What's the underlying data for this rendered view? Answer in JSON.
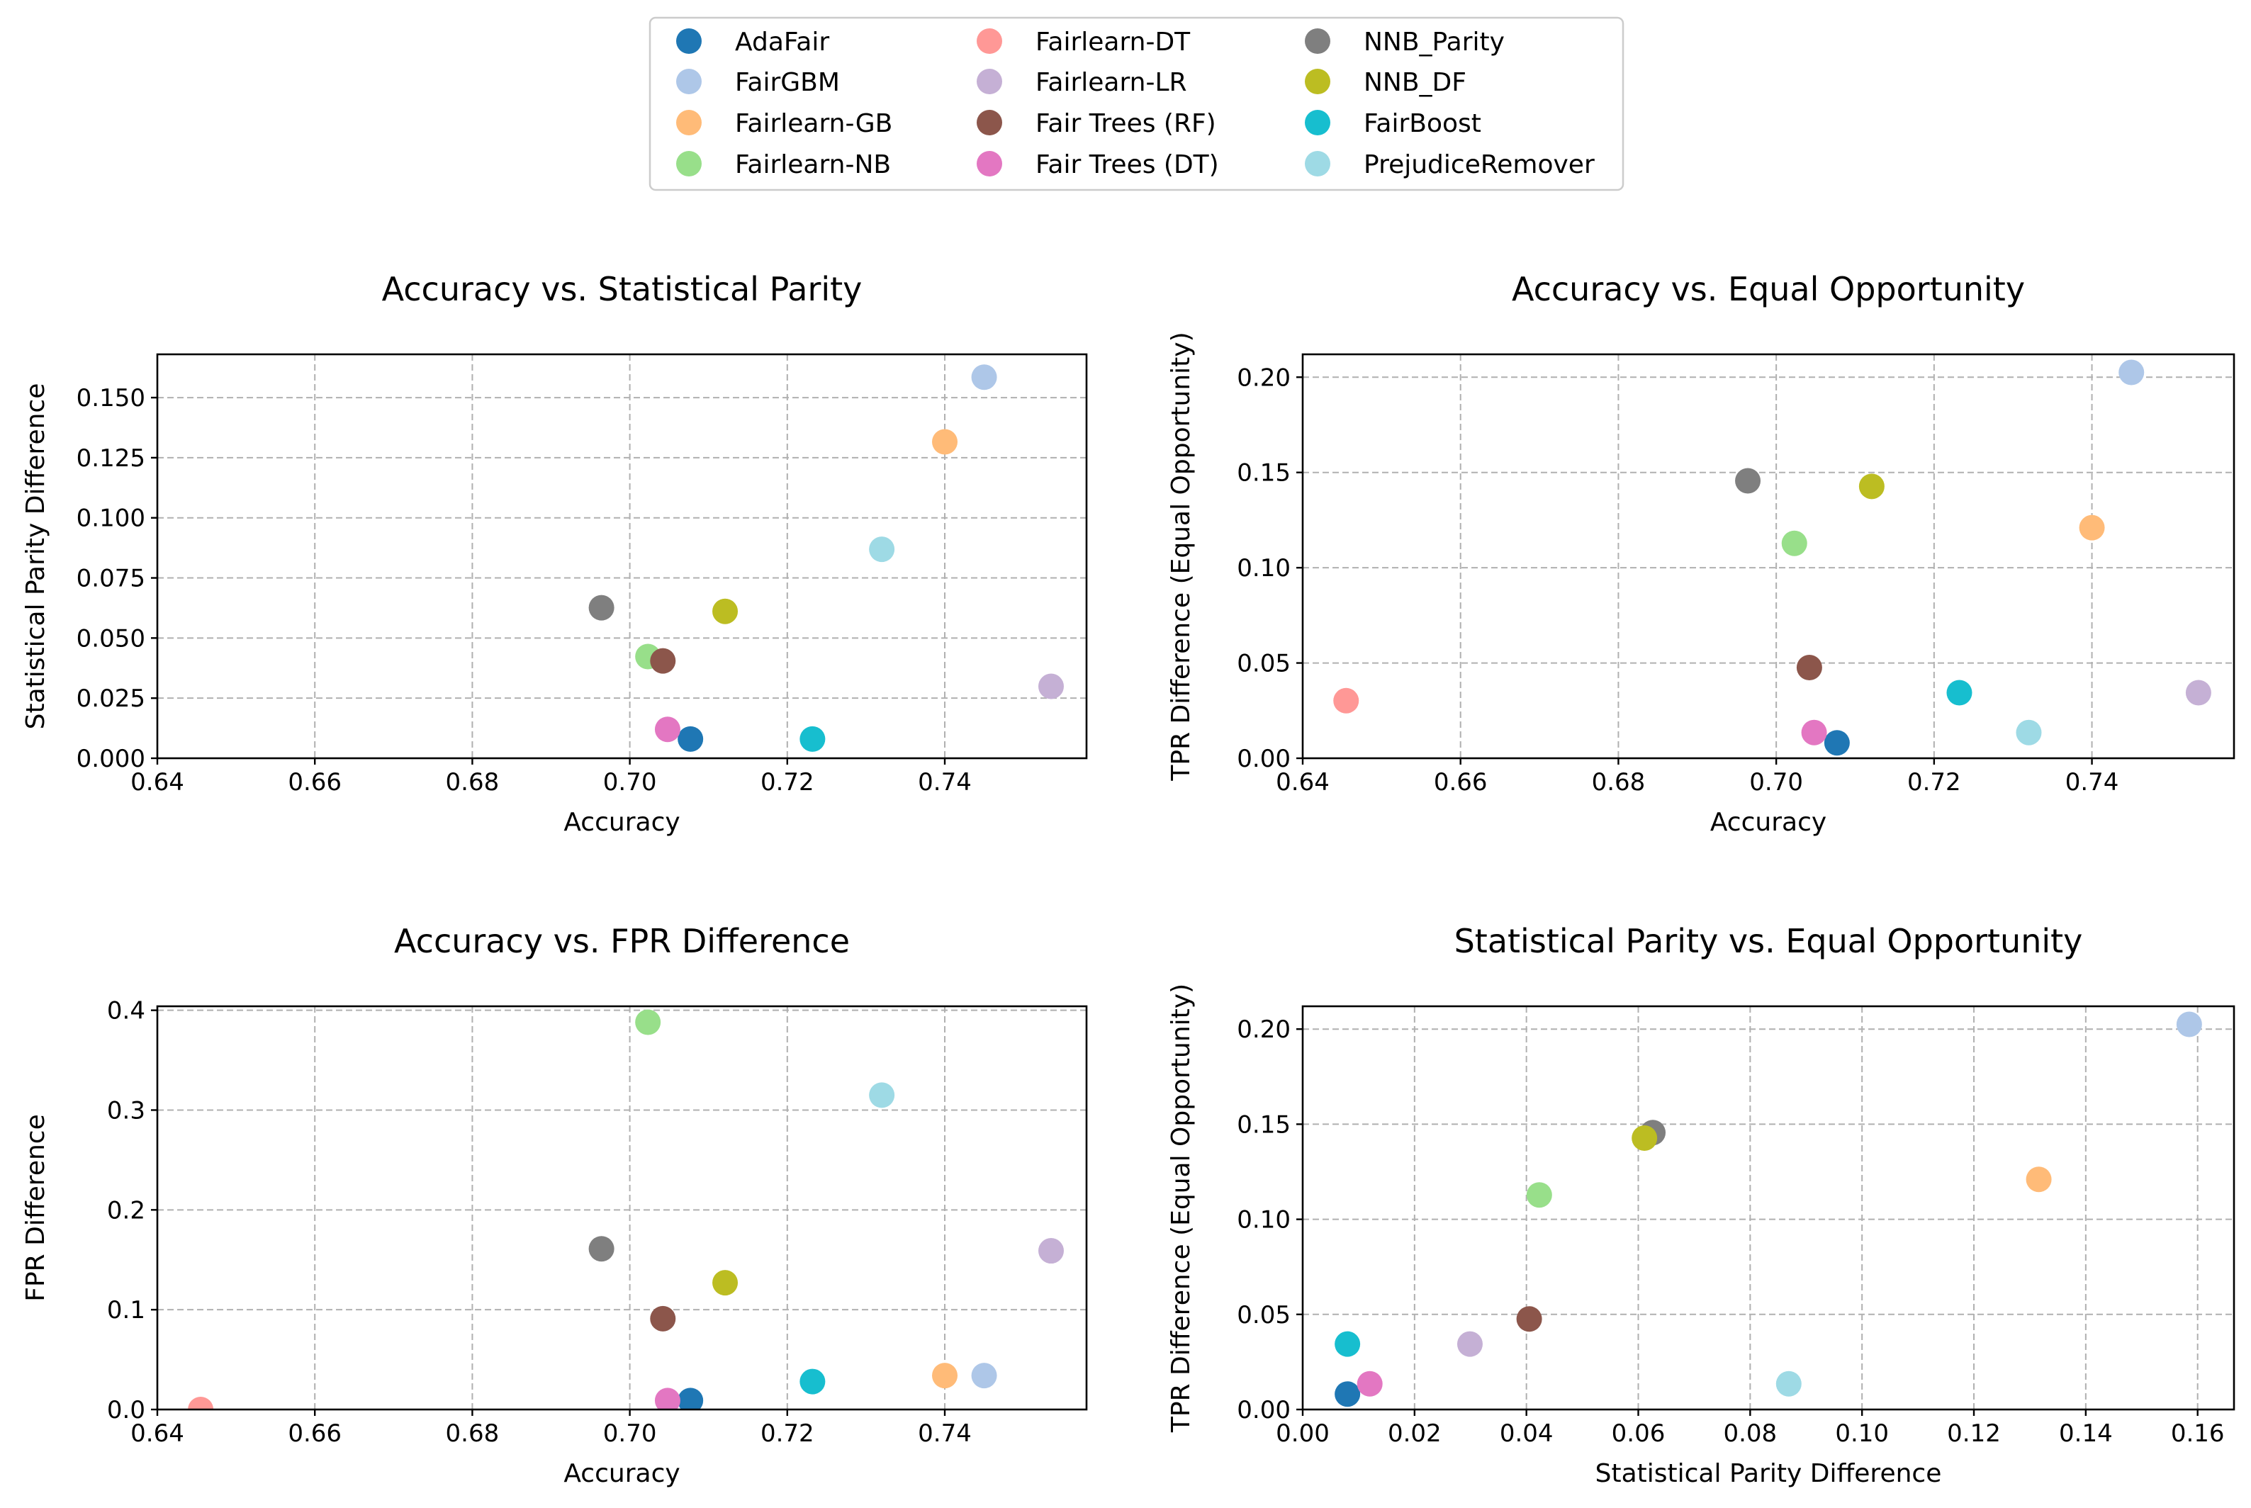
{
  "legend": [
    {
      "name": "AdaFair",
      "color": "#1f77b4"
    },
    {
      "name": "FairGBM",
      "color": "#aec7e8"
    },
    {
      "name": "Fairlearn-GB",
      "color": "#ffbb78"
    },
    {
      "name": "Fairlearn-NB",
      "color": "#98df8a"
    },
    {
      "name": "Fairlearn-DT",
      "color": "#ff9896"
    },
    {
      "name": "Fairlearn-LR",
      "color": "#c5b0d5"
    },
    {
      "name": "Fair Trees (RF)",
      "color": "#8c564b"
    },
    {
      "name": "Fair Trees (DT)",
      "color": "#e377c2"
    },
    {
      "name": "NNB_Parity",
      "color": "#7f7f7f"
    },
    {
      "name": "NNB_DF",
      "color": "#bcbd22"
    },
    {
      "name": "FairBoost",
      "color": "#17becf"
    },
    {
      "name": "PrejudiceRemover",
      "color": "#9edae5"
    }
  ],
  "chart_data": [
    {
      "type": "scatter",
      "title": "Accuracy vs. Statistical Parity",
      "xlabel": "Accuracy",
      "ylabel": "Statistical Parity Difference",
      "xlim": [
        0.64,
        0.758
      ],
      "ylim": [
        0.0,
        0.168
      ],
      "xticks": [
        "0.64",
        "0.66",
        "0.68",
        "0.70",
        "0.72",
        "0.74"
      ],
      "yticks": [
        "0.000",
        "0.025",
        "0.050",
        "0.075",
        "0.100",
        "0.125",
        "0.150"
      ],
      "grid": true,
      "points": [
        {
          "series": "AdaFair",
          "x": 0.7077,
          "y": 0.008
        },
        {
          "series": "FairGBM",
          "x": 0.745,
          "y": 0.1585
        },
        {
          "series": "Fairlearn-GB",
          "x": 0.74,
          "y": 0.1316
        },
        {
          "series": "Fairlearn-NB",
          "x": 0.7023,
          "y": 0.0423
        },
        {
          "series": "Fairlearn-LR",
          "x": 0.7535,
          "y": 0.0299
        },
        {
          "series": "Fair Trees (RF)",
          "x": 0.7042,
          "y": 0.0405
        },
        {
          "series": "Fair Trees (DT)",
          "x": 0.7048,
          "y": 0.012
        },
        {
          "series": "NNB_Parity",
          "x": 0.6964,
          "y": 0.0626
        },
        {
          "series": "NNB_DF",
          "x": 0.7121,
          "y": 0.0611
        },
        {
          "series": "FairBoost",
          "x": 0.7232,
          "y": 0.008
        },
        {
          "series": "PrejudiceRemover",
          "x": 0.732,
          "y": 0.0869
        }
      ]
    },
    {
      "type": "scatter",
      "title": "Accuracy vs. Equal Opportunity",
      "xlabel": "Accuracy",
      "ylabel": "TPR Difference (Equal Opportunity)",
      "xlim": [
        0.64,
        0.758
      ],
      "ylim": [
        0.0,
        0.212
      ],
      "xticks": [
        "0.64",
        "0.66",
        "0.68",
        "0.70",
        "0.72",
        "0.74"
      ],
      "yticks": [
        "0.00",
        "0.05",
        "0.10",
        "0.15",
        "0.20"
      ],
      "grid": true,
      "points": [
        {
          "series": "AdaFair",
          "x": 0.7077,
          "y": 0.0081
        },
        {
          "series": "FairGBM",
          "x": 0.745,
          "y": 0.2025
        },
        {
          "series": "Fairlearn-GB",
          "x": 0.74,
          "y": 0.121
        },
        {
          "series": "Fairlearn-NB",
          "x": 0.7023,
          "y": 0.1128
        },
        {
          "series": "Fairlearn-DT",
          "x": 0.6455,
          "y": 0.0302
        },
        {
          "series": "Fairlearn-LR",
          "x": 0.7535,
          "y": 0.0344
        },
        {
          "series": "Fair Trees (RF)",
          "x": 0.7042,
          "y": 0.0476
        },
        {
          "series": "Fair Trees (DT)",
          "x": 0.7048,
          "y": 0.0135
        },
        {
          "series": "NNB_Parity",
          "x": 0.6964,
          "y": 0.1456
        },
        {
          "series": "NNB_DF",
          "x": 0.7121,
          "y": 0.1427
        },
        {
          "series": "FairBoost",
          "x": 0.7232,
          "y": 0.0344
        },
        {
          "series": "PrejudiceRemover",
          "x": 0.732,
          "y": 0.0135
        }
      ]
    },
    {
      "type": "scatter",
      "title": "Accuracy vs. FPR Difference",
      "xlabel": "Accuracy",
      "ylabel": "FPR Difference",
      "xlim": [
        0.64,
        0.758
      ],
      "ylim": [
        0.0,
        0.404
      ],
      "xticks": [
        "0.64",
        "0.66",
        "0.68",
        "0.70",
        "0.72",
        "0.74"
      ],
      "yticks": [
        "0.0",
        "0.1",
        "0.2",
        "0.3",
        "0.4"
      ],
      "grid": true,
      "points": [
        {
          "series": "AdaFair",
          "x": 0.7077,
          "y": 0.009
        },
        {
          "series": "FairGBM",
          "x": 0.745,
          "y": 0.034
        },
        {
          "series": "Fairlearn-GB",
          "x": 0.74,
          "y": 0.034
        },
        {
          "series": "Fairlearn-NB",
          "x": 0.7023,
          "y": 0.388
        },
        {
          "series": "Fairlearn-DT",
          "x": 0.6455,
          "y": 0.0
        },
        {
          "series": "Fairlearn-LR",
          "x": 0.7535,
          "y": 0.159
        },
        {
          "series": "Fair Trees (RF)",
          "x": 0.7042,
          "y": 0.091
        },
        {
          "series": "Fair Trees (DT)",
          "x": 0.7048,
          "y": 0.009
        },
        {
          "series": "NNB_Parity",
          "x": 0.6964,
          "y": 0.161
        },
        {
          "series": "NNB_DF",
          "x": 0.7121,
          "y": 0.127
        },
        {
          "series": "FairBoost",
          "x": 0.7232,
          "y": 0.028
        },
        {
          "series": "PrejudiceRemover",
          "x": 0.732,
          "y": 0.315
        }
      ]
    },
    {
      "type": "scatter",
      "title": "Statistical Parity vs. Equal Opportunity",
      "xlabel": "Statistical Parity Difference",
      "ylabel": "TPR Difference (Equal Opportunity)",
      "xlim": [
        0.0,
        0.1665
      ],
      "ylim": [
        0.0,
        0.212
      ],
      "xticks": [
        "0.00",
        "0.02",
        "0.04",
        "0.06",
        "0.08",
        "0.10",
        "0.12",
        "0.14",
        "0.16"
      ],
      "yticks": [
        "0.00",
        "0.05",
        "0.10",
        "0.15",
        "0.20"
      ],
      "grid": true,
      "points": [
        {
          "series": "AdaFair",
          "x": 0.008,
          "y": 0.0081
        },
        {
          "series": "FairGBM",
          "x": 0.1585,
          "y": 0.2025
        },
        {
          "series": "Fairlearn-GB",
          "x": 0.1316,
          "y": 0.121
        },
        {
          "series": "Fairlearn-NB",
          "x": 0.0423,
          "y": 0.1128
        },
        {
          "series": "Fairlearn-LR",
          "x": 0.0299,
          "y": 0.0344
        },
        {
          "series": "Fair Trees (RF)",
          "x": 0.0405,
          "y": 0.0476
        },
        {
          "series": "Fair Trees (DT)",
          "x": 0.012,
          "y": 0.0135
        },
        {
          "series": "NNB_Parity",
          "x": 0.0626,
          "y": 0.1456
        },
        {
          "series": "NNB_DF",
          "x": 0.0611,
          "y": 0.1427
        },
        {
          "series": "FairBoost",
          "x": 0.008,
          "y": 0.0344
        },
        {
          "series": "PrejudiceRemover",
          "x": 0.0869,
          "y": 0.0135
        }
      ]
    }
  ]
}
